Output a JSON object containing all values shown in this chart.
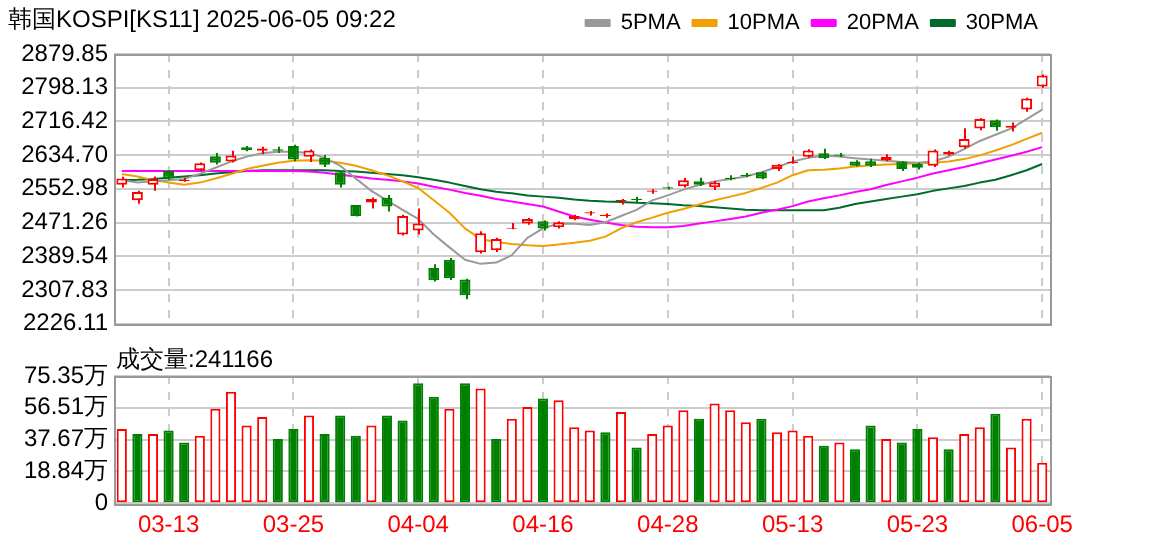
{
  "chart_data": [
    {
      "type": "candlestick",
      "title": "韩国KOSPI[KS11] 2025-06-05 09:22",
      "categories": [
        null,
        null,
        null,
        null,
        null,
        null,
        null,
        null,
        null,
        null,
        null,
        null,
        null,
        null,
        null,
        null,
        null,
        null,
        null,
        null,
        null,
        null,
        null,
        null,
        null,
        null,
        null,
        null,
        null,
        null,
        null,
        null,
        null,
        null,
        null,
        null,
        null,
        null,
        null,
        null,
        null,
        null,
        null,
        null,
        null,
        null,
        null,
        null,
        null,
        null,
        null,
        null,
        null,
        null,
        null,
        null,
        null,
        null,
        null,
        null
      ],
      "ohlc": [
        [
          2563,
          2582,
          2556,
          2578
        ],
        [
          2525,
          2548,
          2517,
          2545
        ],
        [
          2563,
          2583,
          2548,
          2577
        ],
        [
          2596,
          2598,
          2575,
          2578
        ],
        [
          2572,
          2580,
          2570,
          2575
        ],
        [
          2598,
          2617,
          2596,
          2615
        ],
        [
          2632,
          2640,
          2612,
          2616
        ],
        [
          2619,
          2645,
          2617,
          2634
        ],
        [
          2654,
          2657,
          2644,
          2647
        ],
        [
          2645,
          2655,
          2637,
          2651
        ],
        [
          2649,
          2655,
          2640,
          2645
        ],
        [
          2657,
          2660,
          2620,
          2624
        ],
        [
          2631,
          2648,
          2618,
          2646
        ],
        [
          2628,
          2635,
          2606,
          2611
        ],
        [
          2593,
          2596,
          2556,
          2563
        ],
        [
          2514,
          2514,
          2486,
          2487
        ],
        [
          2520,
          2532,
          2505,
          2528
        ],
        [
          2531,
          2538,
          2498,
          2510
        ],
        [
          2442,
          2490,
          2440,
          2487
        ],
        [
          2452,
          2505,
          2442,
          2469
        ],
        [
          2361,
          2370,
          2328,
          2331
        ],
        [
          2381,
          2385,
          2332,
          2336
        ],
        [
          2333,
          2335,
          2285,
          2295
        ],
        [
          2399,
          2450,
          2396,
          2445
        ],
        [
          2404,
          2434,
          2400,
          2431
        ],
        [
          2456,
          2470,
          2455,
          2458
        ],
        [
          2469,
          2482,
          2466,
          2480
        ],
        [
          2474,
          2476,
          2452,
          2457
        ],
        [
          2460,
          2474,
          2457,
          2472
        ],
        [
          2479,
          2490,
          2477,
          2487
        ],
        [
          2493,
          2499,
          2488,
          2496
        ],
        [
          2487,
          2493,
          2483,
          2490
        ],
        [
          2523,
          2528,
          2515,
          2526
        ],
        [
          2529,
          2534,
          2520,
          2526
        ],
        [
          2546,
          2552,
          2541,
          2549
        ],
        [
          2557,
          2558,
          2551,
          2554
        ],
        [
          2559,
          2579,
          2556,
          2574
        ],
        [
          2571,
          2580,
          2560,
          2563
        ],
        [
          2557,
          2572,
          2550,
          2568
        ],
        [
          2580,
          2586,
          2574,
          2576
        ],
        [
          2587,
          2591,
          2581,
          2584
        ],
        [
          2593,
          2595,
          2576,
          2578
        ],
        [
          2601,
          2613,
          2596,
          2611
        ],
        [
          2615,
          2631,
          2614,
          2618
        ],
        [
          2631,
          2649,
          2628,
          2646
        ],
        [
          2639,
          2650,
          2625,
          2627
        ],
        [
          2636,
          2640,
          2630,
          2633
        ],
        [
          2619,
          2622,
          2607,
          2609
        ],
        [
          2620,
          2626,
          2606,
          2609
        ],
        [
          2622,
          2637,
          2620,
          2631
        ],
        [
          2619,
          2620,
          2596,
          2601
        ],
        [
          2613,
          2616,
          2600,
          2604
        ],
        [
          2609,
          2648,
          2606,
          2646
        ],
        [
          2636,
          2645,
          2634,
          2643
        ],
        [
          2654,
          2700,
          2651,
          2674
        ],
        [
          2699,
          2724,
          2695,
          2722
        ],
        [
          2719,
          2721,
          2694,
          2702
        ],
        [
          2701,
          2714,
          2692,
          2705
        ],
        [
          2745,
          2774,
          2740,
          2772
        ],
        [
          2801,
          2830,
          2798,
          2828
        ]
      ],
      "series": [
        {
          "name": "5PMA",
          "type": "line",
          "color": "#999999",
          "values": [
            2574,
            2568,
            2571,
            2574,
            2577,
            2589,
            2604,
            2619,
            2631,
            2639,
            2643,
            2643,
            2640,
            2628,
            2609,
            2578,
            2548,
            2525,
            2502,
            2480,
            2442,
            2411,
            2381,
            2371,
            2374,
            2392,
            2434,
            2457,
            2469,
            2468,
            2465,
            2472,
            2487,
            2502,
            2525,
            2537,
            2551,
            2562,
            2571,
            2577,
            2583,
            2593,
            2606,
            2619,
            2628,
            2634,
            2631,
            2627,
            2624,
            2621,
            2618,
            2616,
            2619,
            2631,
            2649,
            2669,
            2684,
            2699,
            2722,
            2745
          ]
        },
        {
          "name": "10PMA",
          "type": "line",
          "color": "#f0a000",
          "values": [
            2589,
            2583,
            2574,
            2568,
            2563,
            2568,
            2578,
            2589,
            2601,
            2609,
            2616,
            2621,
            2622,
            2621,
            2616,
            2609,
            2598,
            2586,
            2571,
            2555,
            2525,
            2495,
            2457,
            2431,
            2424,
            2419,
            2416,
            2414,
            2418,
            2422,
            2427,
            2437,
            2457,
            2472,
            2483,
            2495,
            2504,
            2515,
            2525,
            2534,
            2543,
            2555,
            2568,
            2586,
            2598,
            2599,
            2602,
            2607,
            2610,
            2612,
            2613,
            2615,
            2616,
            2619,
            2625,
            2634,
            2646,
            2659,
            2674,
            2689
          ]
        },
        {
          "name": "20PMA",
          "type": "line",
          "color": "#ff00ff",
          "values": [
            2596,
            2596,
            2596,
            2596,
            2596,
            2596,
            2596,
            2596,
            2596,
            2596,
            2596,
            2596,
            2595,
            2592,
            2587,
            2583,
            2578,
            2575,
            2571,
            2566,
            2558,
            2551,
            2543,
            2536,
            2528,
            2522,
            2516,
            2510,
            2498,
            2486,
            2478,
            2471,
            2465,
            2461,
            2460,
            2460,
            2463,
            2469,
            2474,
            2480,
            2486,
            2495,
            2502,
            2511,
            2522,
            2530,
            2537,
            2545,
            2552,
            2562,
            2571,
            2580,
            2590,
            2598,
            2606,
            2615,
            2624,
            2633,
            2643,
            2654
          ]
        },
        {
          "name": "30PMA",
          "type": "line",
          "color": "#006b2b",
          "values": [
            2574,
            2575,
            2577,
            2580,
            2583,
            2586,
            2590,
            2593,
            2596,
            2598,
            2598,
            2598,
            2598,
            2598,
            2596,
            2595,
            2592,
            2589,
            2586,
            2581,
            2575,
            2568,
            2560,
            2552,
            2546,
            2542,
            2537,
            2534,
            2531,
            2527,
            2524,
            2522,
            2521,
            2519,
            2518,
            2516,
            2513,
            2511,
            2508,
            2505,
            2502,
            2501,
            2501,
            2501,
            2501,
            2501,
            2507,
            2516,
            2522,
            2528,
            2534,
            2540,
            2548,
            2554,
            2560,
            2568,
            2575,
            2586,
            2598,
            2613
          ]
        }
      ],
      "ylim": [
        2226.11,
        2879.85
      ],
      "yticks": [
        2226.11,
        2307.83,
        2389.54,
        2471.26,
        2552.98,
        {
          "value": 2634.7,
          "label": "2634.70"
        },
        2716.42,
        2798.13,
        2879.85
      ],
      "grid": true,
      "legend": "top right",
      "marker": "none",
      "tick_labels": "y"
    },
    {
      "type": "bar",
      "title": "成交量:241166",
      "categories": [
        null,
        null,
        null,
        "03-13",
        null,
        null,
        null,
        null,
        null,
        null,
        null,
        "03-25",
        null,
        null,
        null,
        null,
        null,
        null,
        null,
        "04-04",
        null,
        null,
        null,
        null,
        null,
        null,
        null,
        "04-16",
        null,
        null,
        null,
        null,
        null,
        null,
        null,
        "04-28",
        null,
        null,
        null,
        null,
        null,
        null,
        null,
        "05-13",
        null,
        null,
        null,
        null,
        null,
        null,
        null,
        "05-23",
        null,
        null,
        null,
        null,
        null,
        null,
        null,
        "06-05"
      ],
      "values": [
        44,
        41,
        41,
        43,
        36,
        40,
        56,
        66,
        46,
        51,
        38,
        44,
        52,
        41,
        52,
        40,
        46,
        52,
        49,
        71,
        63,
        56,
        71,
        68,
        38,
        50,
        57,
        62,
        61,
        45,
        43,
        42,
        54,
        33,
        41,
        46,
        55,
        50,
        59,
        55,
        48,
        50,
        42,
        43,
        40,
        34,
        36,
        32,
        46,
        38,
        36,
        44,
        39,
        32,
        41,
        45,
        53,
        33,
        50,
        24
      ],
      "colors": [
        "#ff0000",
        "#008000",
        "#ff0000",
        "#008000",
        "#008000",
        "#ff0000",
        "#ff0000",
        "#ff0000",
        "#ff0000",
        "#ff0000",
        "#008000",
        "#008000",
        "#ff0000",
        "#008000",
        "#008000",
        "#008000",
        "#ff0000",
        "#008000",
        "#008000",
        "#008000",
        "#008000",
        "#ff0000",
        "#008000",
        "#ff0000",
        "#008000",
        "#ff0000",
        "#ff0000",
        "#008000",
        "#ff0000",
        "#ff0000",
        "#ff0000",
        "#008000",
        "#ff0000",
        "#008000",
        "#ff0000",
        "#ff0000",
        "#ff0000",
        "#008000",
        "#ff0000",
        "#ff0000",
        "#ff0000",
        "#008000",
        "#ff0000",
        "#ff0000",
        "#ff0000",
        "#008000",
        "#ff0000",
        "#008000",
        "#008000",
        "#ff0000",
        "#008000",
        "#008000",
        "#ff0000",
        "#008000",
        "#ff0000",
        "#ff0000",
        "#008000",
        "#ff0000",
        "#ff0000",
        "#ff0000"
      ],
      "ylim": [
        0,
        75.35
      ],
      "yticks": [
        0,
        {
          "value": 18.84,
          "label": "18.84万"
        },
        {
          "value": 37.67,
          "label": "37.67万"
        },
        {
          "value": 56.51,
          "label": "56.51万"
        },
        {
          "value": 75.35,
          "label": "75.35万"
        }
      ],
      "grid": true
    }
  ]
}
